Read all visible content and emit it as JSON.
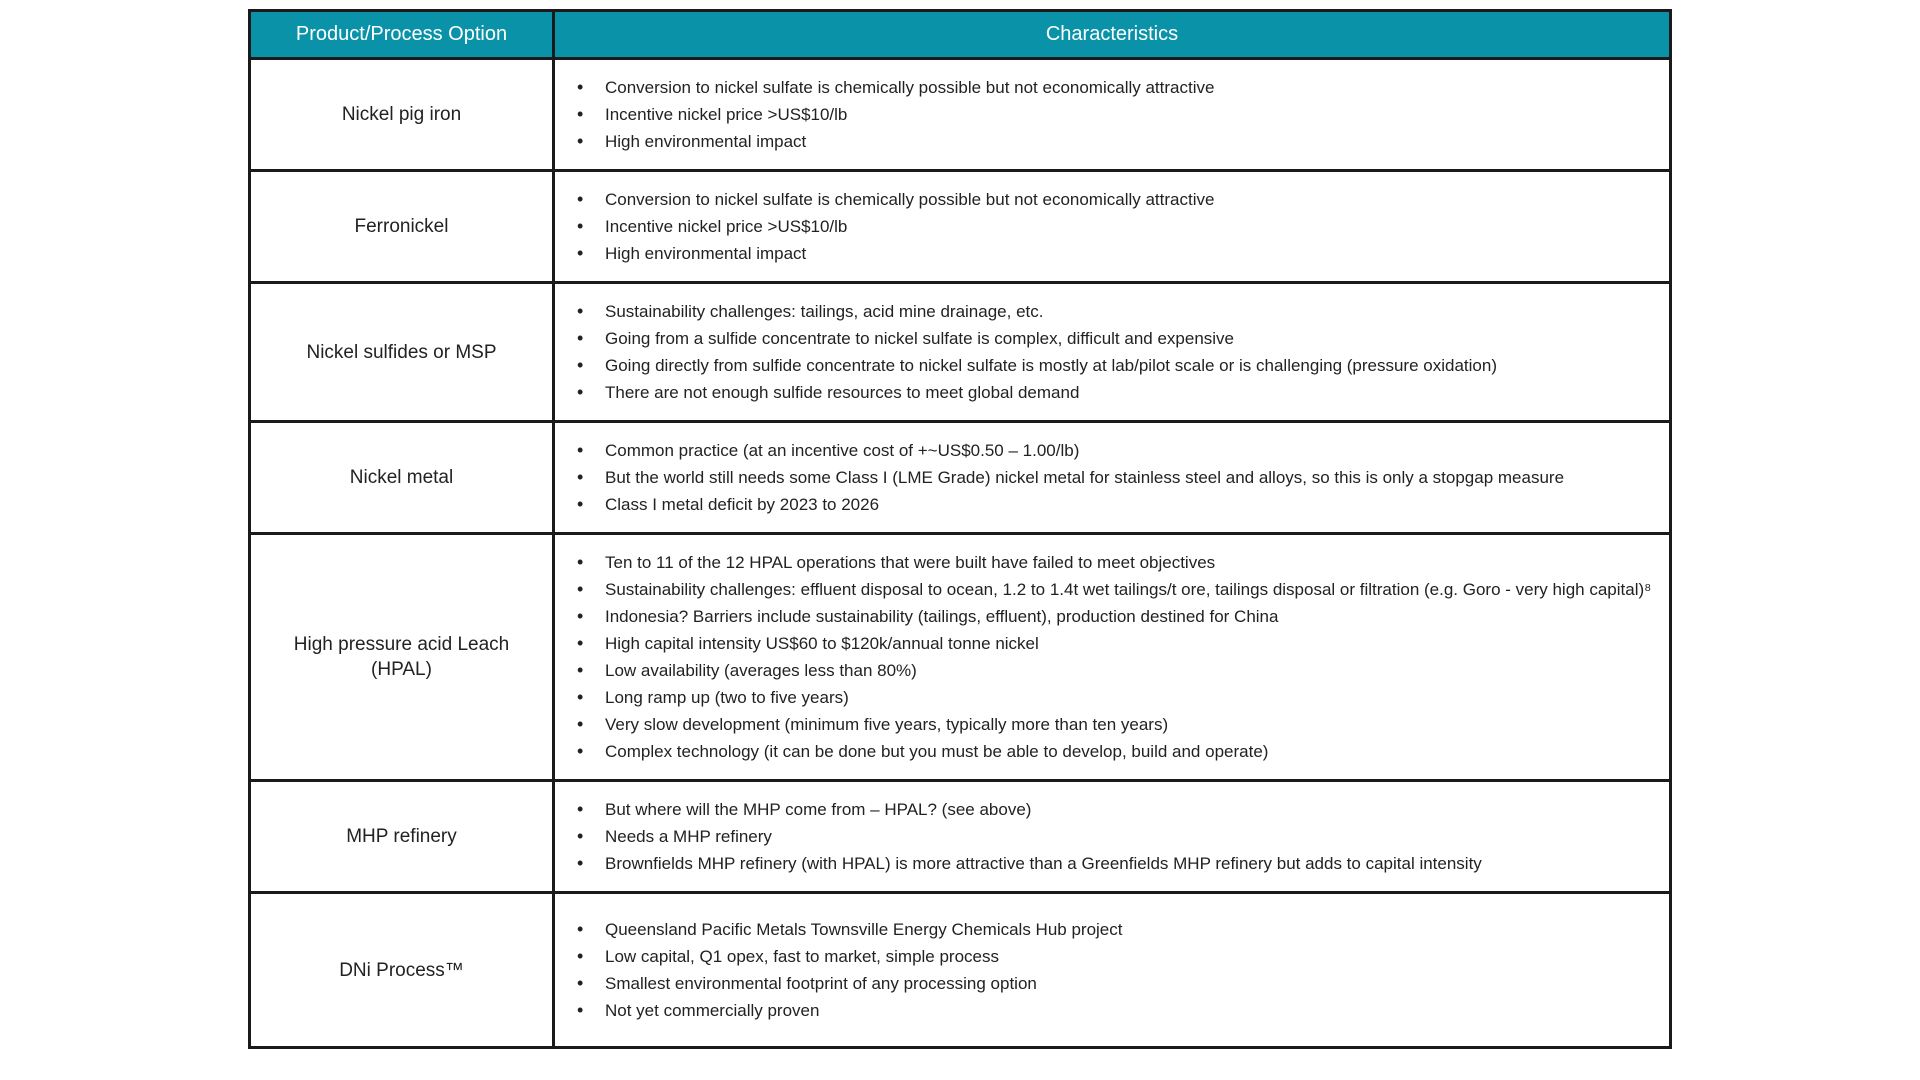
{
  "colors": {
    "header_bg": "#0A93A8",
    "header_text": "#FFFFFF",
    "border": "#1A1A1A",
    "text": "#222222",
    "page_bg": "#FFFFFF"
  },
  "table": {
    "header": {
      "col1": "Product/Process Option",
      "col2": "Characteristics"
    },
    "rows": [
      {
        "option": "Nickel pig iron",
        "bullets": [
          "Conversion to nickel sulfate is chemically possible but not economically attractive",
          "Incentive nickel price >US$10/lb",
          "High environmental impact"
        ]
      },
      {
        "option": "Ferronickel",
        "bullets": [
          "Conversion to nickel sulfate is chemically possible but not economically attractive",
          "Incentive nickel price >US$10/lb",
          "High environmental impact"
        ]
      },
      {
        "option": "Nickel sulfides or MSP",
        "bullets": [
          "Sustainability challenges: tailings, acid mine drainage, etc.",
          "Going from a sulfide concentrate to nickel sulfate is complex, difficult and expensive",
          "Going directly from sulfide concentrate to nickel sulfate is mostly at lab/pilot scale or is challenging (pressure oxidation)",
          "There are not enough sulfide resources to meet global demand"
        ]
      },
      {
        "option": "Nickel metal",
        "bullets": [
          "Common practice (at an incentive cost of +~US$0.50 – 1.00/lb)",
          "But the world still needs some Class I (LME Grade) nickel metal for stainless steel and alloys, so this is only a stopgap measure",
          "Class I metal deficit by 2023 to 2026"
        ]
      },
      {
        "option": "High pressure acid Leach (HPAL)",
        "bullets": [
          "Ten to 11 of the 12 HPAL operations that were built have failed to meet objectives",
          "Sustainability challenges: effluent disposal to ocean, 1.2 to 1.4t wet tailings/t ore, tailings disposal or filtration (e.g. Goro - very high capital)⁸",
          "Indonesia? Barriers include sustainability (tailings, effluent), production destined for China",
          "High capital intensity US$60 to $120k/annual tonne nickel",
          "Low availability (averages less than 80%)",
          "Long ramp up (two to five years)",
          "Very slow development (minimum five years, typically more than ten years)",
          "Complex technology (it can be done but you must be able to develop, build and operate)"
        ]
      },
      {
        "option": "MHP refinery",
        "bullets": [
          "But where will the MHP come from – HPAL? (see above)",
          "Needs a MHP refinery",
          "Brownfields MHP refinery (with HPAL) is more attractive than a Greenfields MHP refinery but adds to capital intensity"
        ]
      },
      {
        "option": "DNi Process™",
        "bullets": [
          "Queensland Pacific Metals Townsville Energy Chemicals Hub project",
          "Low capital, Q1 opex, fast to market, simple process",
          "Smallest environmental footprint of any processing option",
          "Not yet commercially proven"
        ]
      }
    ]
  }
}
